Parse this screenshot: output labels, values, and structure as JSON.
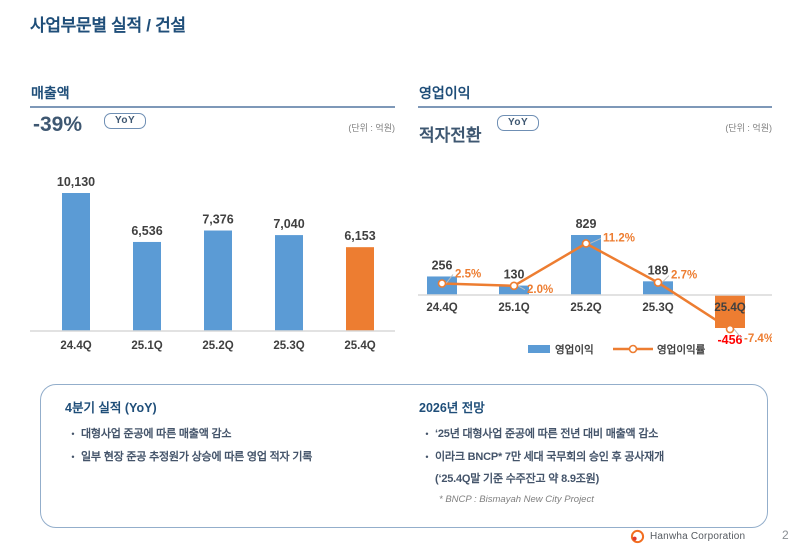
{
  "header": {
    "title": "사업부문별 실적 / 건설"
  },
  "revenue_panel": {
    "title": "매출액",
    "delta": "-39%",
    "delta_badge": "YoY",
    "unit": "(단위 : 억원)"
  },
  "profit_panel": {
    "title": "영업이익",
    "delta": "적자전환",
    "delta_badge": "YoY",
    "unit": "(단위 : 억원)"
  },
  "chart_data": [
    {
      "type": "bar",
      "title": "매출액",
      "unit": "억원",
      "categories": [
        "24.4Q",
        "25.1Q",
        "25.2Q",
        "25.3Q",
        "25.4Q"
      ],
      "values": [
        10130,
        6536,
        7376,
        7040,
        6153
      ],
      "value_labels": [
        "10,130",
        "6,536",
        "7,376",
        "7,040",
        "6,153"
      ],
      "highlight_index": 4,
      "ylim": [
        0,
        10130
      ],
      "grid": false,
      "legend_position": "none"
    },
    {
      "type": "bar+line",
      "title": "영업이익",
      "unit": "억원",
      "categories": [
        "24.4Q",
        "25.1Q",
        "25.2Q",
        "25.3Q",
        "25.4Q"
      ],
      "series": [
        {
          "name": "영업이익",
          "type": "bar",
          "values": [
            256,
            130,
            829,
            189,
            -456
          ],
          "labels": [
            "256",
            "130",
            "829",
            "189",
            "-456"
          ]
        },
        {
          "name": "영업이익률",
          "type": "line",
          "values": [
            2.5,
            2.0,
            11.2,
            2.7,
            -7.4
          ],
          "labels": [
            "2.5%",
            "2.0%",
            "11.2%",
            "2.7%",
            "-7.4%"
          ]
        }
      ],
      "highlight_index": 4,
      "grid": false,
      "legend_position": "bottom",
      "legend": [
        "영업이익",
        "영업이익률"
      ]
    }
  ],
  "notes": {
    "left": {
      "title": "4분기 실적 (YoY)",
      "bullets": [
        "대형사업 준공에 따른 매출액 감소",
        "일부 현장 준공 추정원가 상승에 따른 영업 적자 기록"
      ]
    },
    "right": {
      "title": "2026년 전망",
      "bullets": [
        "‘25년 대형사업 준공에 따른 전년 대비 매출액 감소",
        "이라크 BNCP* 7만 세대 국무회의 승인 후 공사재개"
      ],
      "subline": "(‘25.4Q말 기준 수주잔고 약 8.9조원)",
      "footnote": "* BNCP : Bismayah New City Project"
    }
  },
  "footer": {
    "brand": "Hanwha Corporation",
    "page": "2"
  },
  "colors": {
    "navy": "#1F4E79",
    "slate": "#3E5771",
    "bar_blue": "#5B9BD5",
    "orange": "#ED7D31",
    "rule_blue": "#24527F",
    "rule_orange": "#F07D28",
    "red": "#FF0000",
    "label_dark": "#404040",
    "axis_gray": "#D9D9D9",
    "connector_gray": "#BFBFBF"
  }
}
